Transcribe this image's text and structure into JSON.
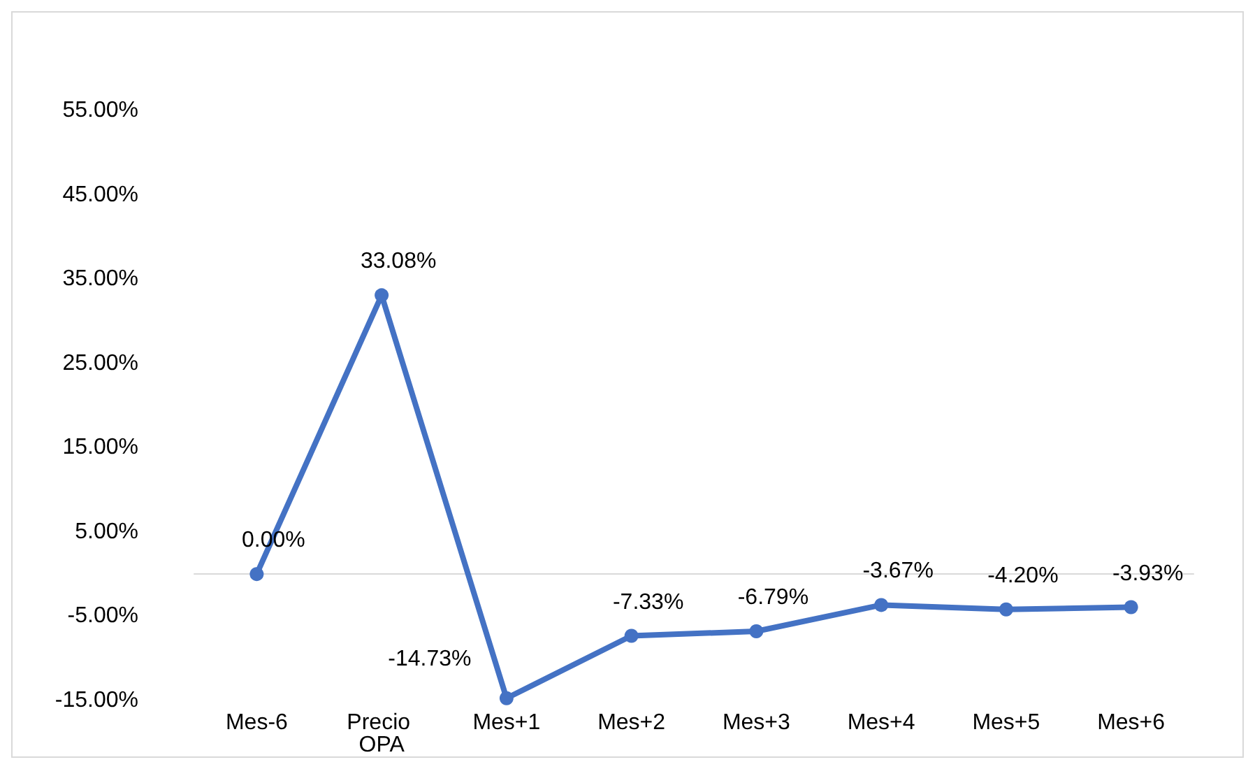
{
  "chart_data": {
    "type": "line",
    "categories": [
      "Mes-6",
      "Precio OPA",
      "Mes+1",
      "Mes+2",
      "Mes+3",
      "Mes+4",
      "Mes+5",
      "Mes+6"
    ],
    "series": [
      {
        "color": "#4472c4",
        "values": [
          0,
          33.08,
          -14.73,
          -7.33,
          -6.79,
          -3.67,
          -4.2,
          -3.93
        ],
        "value_labels": [
          "0.00%",
          "33.08%",
          "-14.73%",
          "-7.33%",
          "-6.79%",
          "-3.67%",
          "-4.20%",
          "-3.93%"
        ]
      }
    ],
    "ylim": [
      -15,
      55
    ],
    "yticks": [
      {
        "value": -15,
        "label": "-15.00%"
      },
      {
        "value": -5,
        "label": "-5.00%"
      },
      {
        "value": 5,
        "label": "5.00%"
      },
      {
        "value": 15,
        "label": "15.00%"
      },
      {
        "value": 25,
        "label": "25.00%"
      },
      {
        "value": 35,
        "label": "35.00%"
      },
      {
        "value": 45,
        "label": "45.00%"
      },
      {
        "value": 55,
        "label": "55.00%"
      }
    ],
    "grid": false,
    "marker": "circle",
    "line_style": "solid"
  }
}
